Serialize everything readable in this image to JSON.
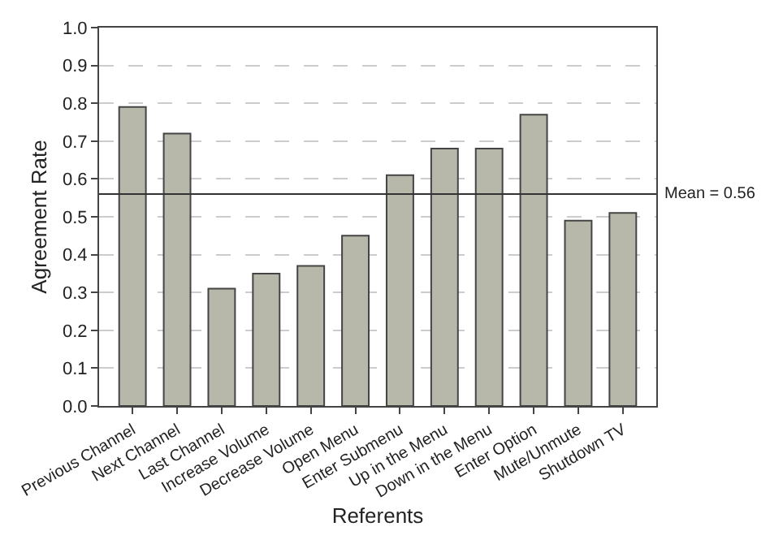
{
  "chart_data": {
    "type": "bar",
    "xlabel": "Referents",
    "ylabel": "Agreement Rate",
    "categories": [
      "Previous Channel",
      "Next Channel",
      "Last Channel",
      "Increase Volume",
      "Decrease Volume",
      "Open Menu",
      "Enter Submenu",
      "Up in the Menu",
      "Down in the Menu",
      "Enter Option",
      "Mute/Unmute",
      "Shutdown TV"
    ],
    "values": [
      0.79,
      0.72,
      0.31,
      0.35,
      0.37,
      0.45,
      0.61,
      0.68,
      0.68,
      0.77,
      0.49,
      0.51
    ],
    "color": "#b8b8aa",
    "ylim": [
      0,
      1
    ],
    "yticks": [
      {
        "value": 0,
        "label": "0.0"
      },
      0.1,
      0.2,
      0.3,
      0.4,
      0.5,
      0.6,
      0.7,
      0.8,
      0.9,
      {
        "value": 1,
        "label": "1.0"
      }
    ],
    "grid": "y",
    "ref_lines": [
      {
        "axis": "y",
        "value": 0.56,
        "label": "Mean = 0.56",
        "color": "#333333"
      }
    ]
  }
}
